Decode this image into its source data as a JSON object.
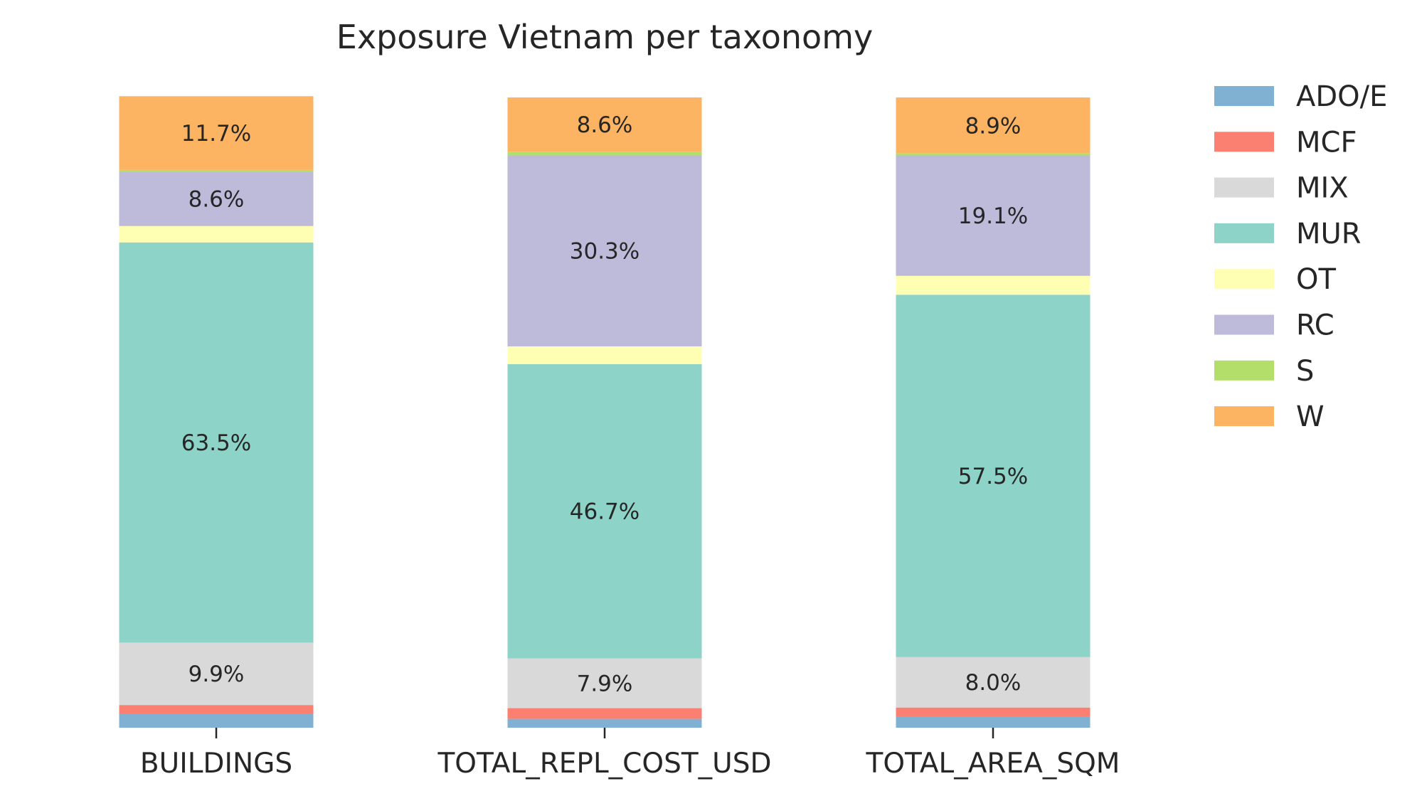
{
  "chart_data": {
    "type": "bar",
    "stacked": true,
    "normalized": true,
    "title": "Exposure Vietnam per taxonomy",
    "xlabel": "",
    "ylabel": "",
    "ylim": [
      0,
      1
    ],
    "grid": false,
    "legend_position": "right",
    "categories": [
      "BUILDINGS",
      "TOTAL_REPL_COST_USD",
      "TOTAL_AREA_SQM"
    ],
    "series": [
      {
        "name": "ADO/E",
        "color": "#80b1d3",
        "values": [
          0.022,
          0.014,
          0.017
        ],
        "labels": [
          "",
          "",
          ""
        ]
      },
      {
        "name": "MCF",
        "color": "#fb8072",
        "values": [
          0.014,
          0.017,
          0.015
        ],
        "labels": [
          "",
          "",
          ""
        ]
      },
      {
        "name": "MIX",
        "color": "#d9d9d9",
        "values": [
          0.099,
          0.079,
          0.08
        ],
        "labels": [
          "9.9%",
          "7.9%",
          "8.0%"
        ]
      },
      {
        "name": "MUR",
        "color": "#8dd3c7",
        "values": [
          0.635,
          0.467,
          0.575
        ],
        "labels": [
          "63.5%",
          "46.7%",
          "57.5%"
        ]
      },
      {
        "name": "OT",
        "color": "#ffffb3",
        "values": [
          0.026,
          0.028,
          0.03
        ],
        "labels": [
          "",
          "",
          ""
        ]
      },
      {
        "name": "RC",
        "color": "#bebada",
        "values": [
          0.086,
          0.303,
          0.191
        ],
        "labels": [
          "8.6%",
          "30.3%",
          "19.1%"
        ]
      },
      {
        "name": "S",
        "color": "#b3de69",
        "values": [
          0.003,
          0.006,
          0.003
        ],
        "labels": [
          "",
          "",
          ""
        ]
      },
      {
        "name": "W",
        "color": "#fdb462",
        "values": [
          0.117,
          0.086,
          0.089
        ],
        "labels": [
          "11.7%",
          "8.6%",
          "8.9%"
        ]
      }
    ]
  }
}
